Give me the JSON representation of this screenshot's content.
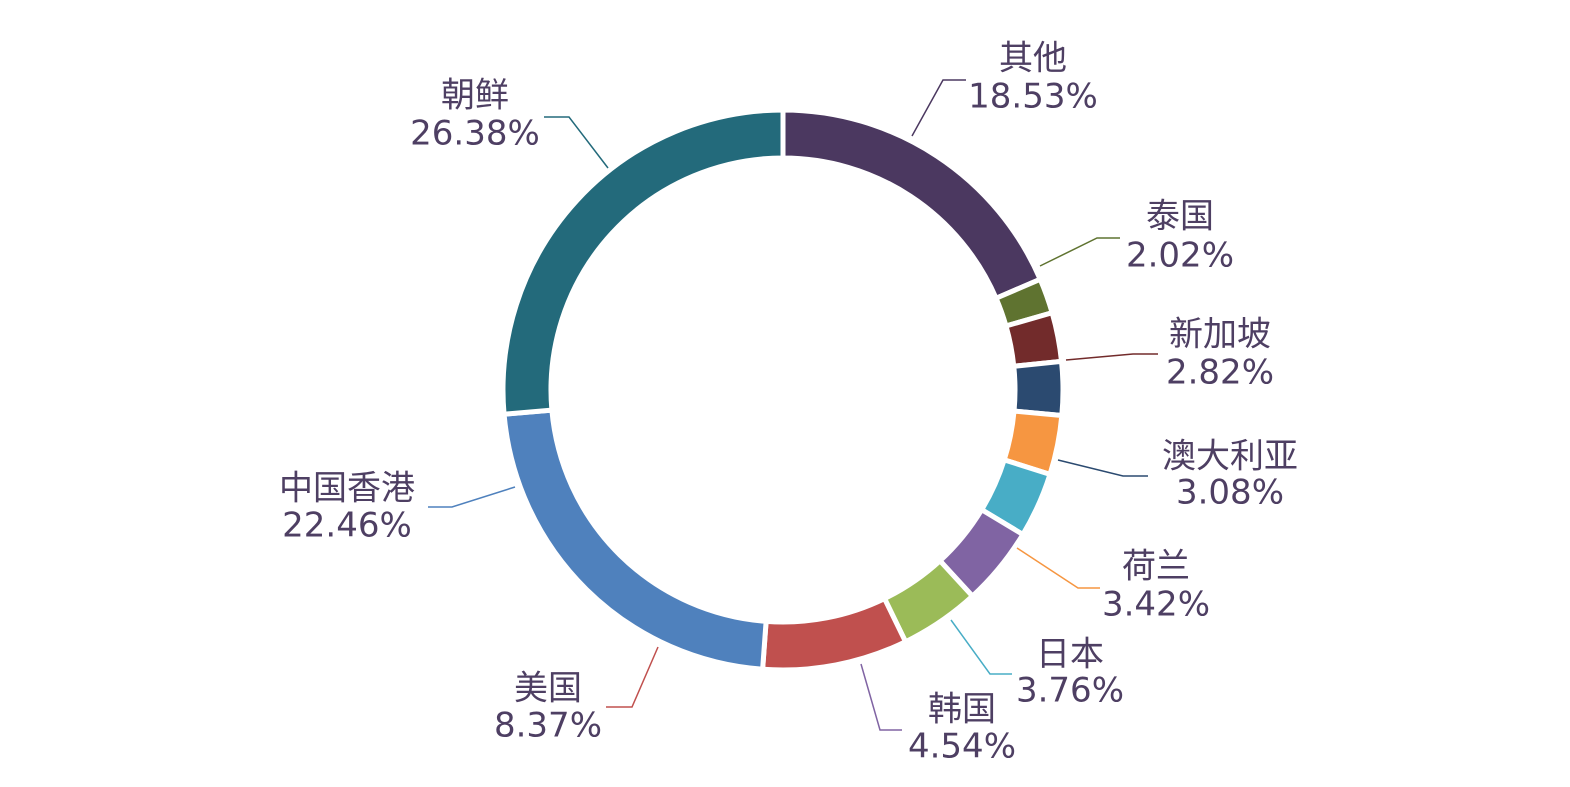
{
  "chart_data": {
    "type": "pie",
    "style": "donut",
    "title": "",
    "slices": [
      {
        "label": "其他",
        "value": 18.53,
        "display": "18.53%",
        "color": "#4b3860"
      },
      {
        "label": "泰国",
        "value": 2.02,
        "display": "2.02%",
        "color": "#5f7330"
      },
      {
        "label": "新加坡",
        "value": 2.82,
        "display": "2.82%",
        "color": "#722b2b"
      },
      {
        "label": "澳大利亚",
        "value": 3.08,
        "display": "3.08%",
        "color": "#2b4a70"
      },
      {
        "label": "荷兰",
        "value": 3.42,
        "display": "3.42%",
        "color": "#f69641"
      },
      {
        "label": "日本",
        "value": 3.76,
        "display": "3.76%",
        "color": "#48adc6"
      },
      {
        "label": "韩国",
        "value": 4.54,
        "display": "4.54%",
        "color": "#8064a3"
      },
      {
        "label": "",
        "value": 4.62,
        "display": "",
        "color": "#9bbb58"
      },
      {
        "label": "美国",
        "value": 8.37,
        "display": "8.37%",
        "color": "#c0504e"
      },
      {
        "label": "中国香港",
        "value": 22.46,
        "display": "22.46%",
        "color": "#4f81bd"
      },
      {
        "label": "朝鲜",
        "value": 26.38,
        "display": "26.38%",
        "color": "#236a7b"
      }
    ]
  }
}
